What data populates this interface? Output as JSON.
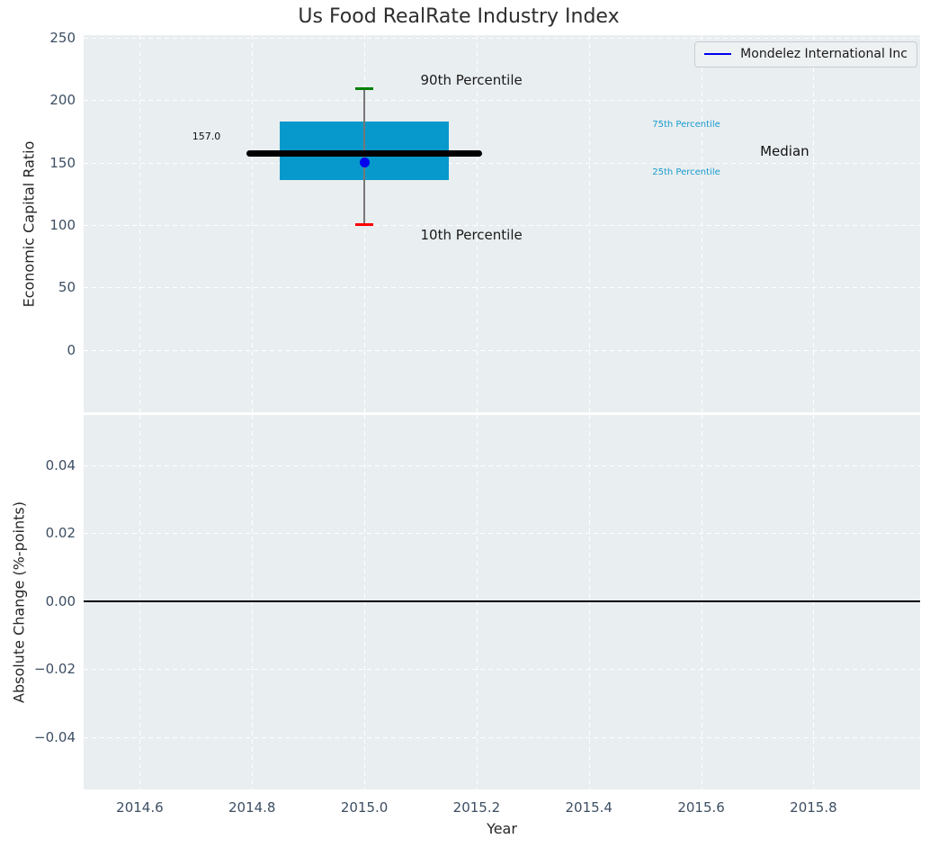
{
  "figure": {
    "title": "Us Food RealRate Industry Index",
    "background_color": "#ffffff",
    "axes_background_color": "#e9eef0",
    "grid_color": "#ffffff",
    "tick_label_color": "#3d4e63",
    "axis_label_color": "#262626"
  },
  "chart_data": [
    {
      "type": "box",
      "title": "Us Food RealRate Industry Index",
      "xlabel": "Year",
      "ylabel": "Economic Capital Ratio",
      "xlim": [
        2014.5,
        2015.99
      ],
      "ylim": [
        -50,
        252
      ],
      "grid": true,
      "legend_position": "upper right",
      "xticks": [
        2014.6,
        2014.8,
        2015.0,
        2015.2,
        2015.4,
        2015.6,
        2015.8
      ],
      "xtick_labels": [
        "2014.6",
        "2014.8",
        "2015.0",
        "2015.2",
        "2015.4",
        "2015.6",
        "2015.8"
      ],
      "yticks": [
        0,
        50,
        100,
        150,
        200,
        250
      ],
      "ytick_labels": [
        "0",
        "50",
        "100",
        "150",
        "200",
        "250"
      ],
      "box": {
        "x": 2015.0,
        "p10": 100,
        "p25": 136,
        "median": 157,
        "p75": 183,
        "p90": 209,
        "median_label": "157.0",
        "box_x_range": [
          2014.85,
          2015.15
        ],
        "median_x_range": [
          2014.79,
          2015.21
        ],
        "box_color": "#0899cc",
        "median_color": "#000000",
        "whisker_color": "#777777",
        "p90_cap_color": "#008000",
        "p10_cap_color": "#ff0000"
      },
      "company_point": {
        "label": "Mondelez International Inc",
        "x": 2015.0,
        "value": 150,
        "color": "#0000ee"
      },
      "annotations": [
        {
          "text": "90th Percentile",
          "color": "#1a1a1a"
        },
        {
          "text": "10th Percentile",
          "color": "#1a1a1a"
        },
        {
          "text": "157.0",
          "color": "#111111"
        },
        {
          "text": "75th Percentile",
          "color": "#1a9bce"
        },
        {
          "text": "25th Percentile",
          "color": "#1a9bce"
        },
        {
          "text": "Median",
          "color": "#111111"
        }
      ],
      "legend": {
        "entries": [
          {
            "label": "Mondelez International Inc",
            "color": "#0000ee"
          }
        ]
      }
    },
    {
      "type": "line",
      "xlabel": "Year",
      "ylabel": "Absolute Change (%-points)",
      "xlim": [
        2014.5,
        2015.99
      ],
      "ylim": [
        -0.0555,
        0.0548
      ],
      "grid": true,
      "xticks": [
        2014.6,
        2014.8,
        2015.0,
        2015.2,
        2015.4,
        2015.6,
        2015.8
      ],
      "xtick_labels": [
        "2014.6",
        "2014.8",
        "2015.0",
        "2015.2",
        "2015.4",
        "2015.6",
        "2015.8"
      ],
      "yticks": [
        -0.04,
        -0.02,
        0,
        0.02,
        0.04
      ],
      "ytick_labels": [
        "−0.04",
        "−0.02",
        "0.00",
        "0.02",
        "0.04"
      ],
      "zero_line": {
        "value": 0,
        "color": "#000000"
      },
      "series": []
    }
  ]
}
